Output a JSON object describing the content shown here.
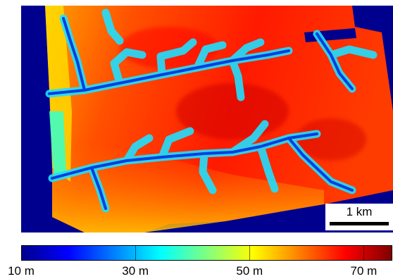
{
  "scale_bar": {
    "label": "1 km"
  },
  "colorbar": {
    "min": 10,
    "max": 75,
    "ticks": [
      {
        "value": 10,
        "label": "10 m"
      },
      {
        "value": 30,
        "label": "30 m"
      },
      {
        "value": 50,
        "label": "50 m"
      },
      {
        "value": 70,
        "label": "70 m"
      }
    ],
    "colors": [
      "#00008f",
      "#0000ff",
      "#0080ff",
      "#00ffff",
      "#80ff80",
      "#ffff00",
      "#ff8000",
      "#ff0000",
      "#800000"
    ]
  },
  "map": {
    "background_color": "#00008f",
    "river_color": "#00a0ff"
  }
}
